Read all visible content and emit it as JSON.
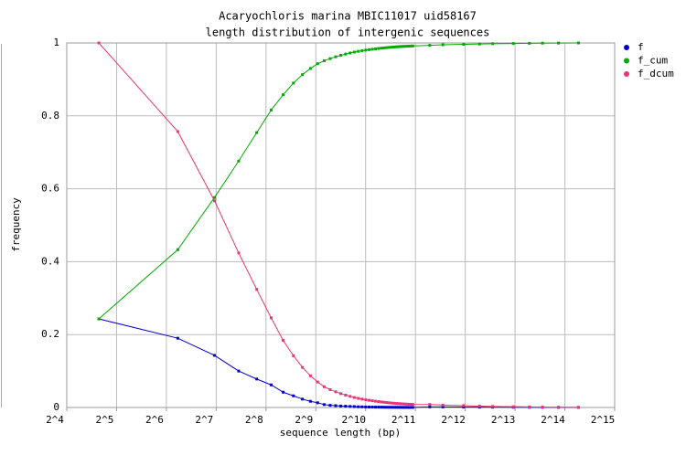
{
  "chart_data": {
    "type": "line",
    "title": "Acaryochloris marina MBIC11017 uid58167",
    "subtitle": "length distribution of intergenic sequences",
    "x_label": "sequence length (bp)",
    "y_label": "frequency",
    "log_x": 2,
    "grid": true,
    "legend": "right",
    "xlim": [
      16,
      32768
    ],
    "ylim": [
      0,
      1
    ],
    "xticks": [
      {
        "value": 16,
        "label": "2^4"
      },
      {
        "value": 32,
        "label": "2^5"
      },
      {
        "value": 64,
        "label": "2^6"
      },
      {
        "value": 128,
        "label": "2^7"
      },
      {
        "value": 256,
        "label": "2^8"
      },
      {
        "value": 512,
        "label": "2^9"
      },
      {
        "value": 1024,
        "label": "2^10"
      },
      {
        "value": 2048,
        "label": "2^11"
      },
      {
        "value": 4096,
        "label": "2^12"
      },
      {
        "value": 8192,
        "label": "2^13"
      },
      {
        "value": 16384,
        "label": "2^14"
      },
      {
        "value": 32768,
        "label": "2^15"
      }
    ],
    "yticks": [
      0,
      0.2,
      0.4,
      0.6,
      0.8,
      1
    ],
    "x": [
      25,
      75,
      125,
      175,
      225,
      275,
      325,
      375,
      425,
      475,
      525,
      575,
      625,
      675,
      725,
      775,
      825,
      875,
      925,
      975,
      1025,
      1075,
      1125,
      1175,
      1225,
      1275,
      1325,
      1375,
      1425,
      1475,
      1525,
      1575,
      1625,
      1675,
      1725,
      1775,
      1825,
      1875,
      1925,
      1975,
      2500,
      3000,
      4000,
      5000,
      6000,
      8000,
      10000,
      12000,
      15000,
      19800
    ],
    "series": [
      {
        "name": "f",
        "color": "#0000cc",
        "values": [
          0.243,
          0.19,
          0.143,
          0.1,
          0.078,
          0.062,
          0.042,
          0.032,
          0.023,
          0.017,
          0.013,
          0.008,
          0.006,
          0.005,
          0.004,
          0.0035,
          0.003,
          0.0025,
          0.002,
          0.0018,
          0.0015,
          0.0013,
          0.0012,
          0.001,
          0.001,
          0.0009,
          0.0008,
          0.0007,
          0.0006,
          0.0006,
          0.0005,
          0.0005,
          0.0004,
          0.0004,
          0.0003,
          0.0003,
          0.0003,
          0.0002,
          0.0002,
          0.0002,
          0.0017,
          0.0015,
          0.0012,
          0.001,
          0.0008,
          0.0006,
          0.0005,
          0.0004,
          0.0003,
          0.0003
        ]
      },
      {
        "name": "f_cum",
        "color": "#00aa00",
        "values": [
          0.243,
          0.433,
          0.576,
          0.676,
          0.754,
          0.816,
          0.858,
          0.89,
          0.913,
          0.93,
          0.943,
          0.951,
          0.957,
          0.962,
          0.966,
          0.9695,
          0.9725,
          0.975,
          0.977,
          0.9788,
          0.9803,
          0.9816,
          0.9828,
          0.9838,
          0.9848,
          0.9857,
          0.9865,
          0.9872,
          0.9878,
          0.9884,
          0.9889,
          0.9894,
          0.9898,
          0.9902,
          0.9905,
          0.9908,
          0.9911,
          0.9913,
          0.9915,
          0.9917,
          0.9934,
          0.9949,
          0.9961,
          0.9971,
          0.9979,
          0.9985,
          0.999,
          0.9994,
          0.9997,
          1
        ]
      },
      {
        "name": "f_dcum",
        "color": "#ee3377",
        "values": [
          1,
          0.757,
          0.567,
          0.424,
          0.324,
          0.246,
          0.184,
          0.142,
          0.11,
          0.087,
          0.07,
          0.057,
          0.049,
          0.043,
          0.038,
          0.034,
          0.0305,
          0.0275,
          0.025,
          0.023,
          0.0212,
          0.0197,
          0.0184,
          0.0172,
          0.0162,
          0.0152,
          0.0143,
          0.0135,
          0.0128,
          0.0122,
          0.0116,
          0.0111,
          0.0106,
          0.0102,
          0.0098,
          0.0095,
          0.0092,
          0.0089,
          0.0087,
          0.0085,
          0.0083,
          0.0066,
          0.0051,
          0.0039,
          0.0029,
          0.0021,
          0.0015,
          0.001,
          0.0006,
          0.0003
        ]
      }
    ]
  }
}
